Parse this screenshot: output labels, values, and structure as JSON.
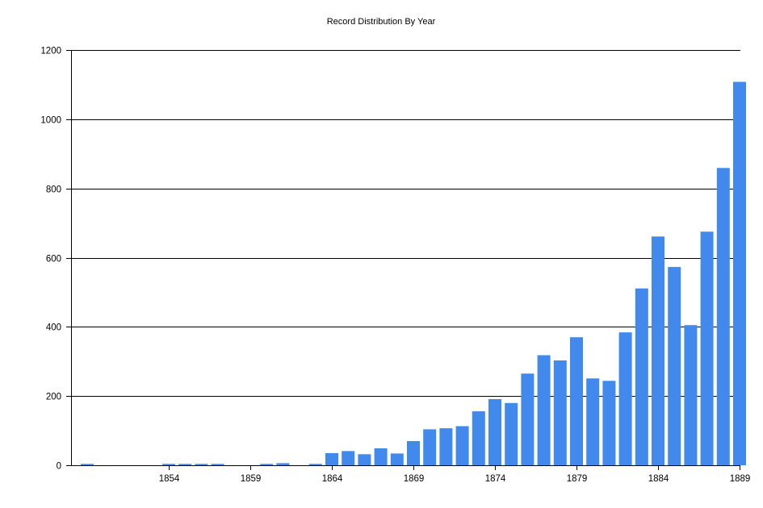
{
  "chart_data": {
    "type": "bar",
    "title": "Record Distribution By Year",
    "xlabel": "",
    "ylabel": "",
    "ylim": [
      0,
      1200
    ],
    "yticks": [
      "0",
      "200",
      "400",
      "600",
      "800",
      "1000",
      "1200"
    ],
    "xtick_labels": [
      "1854",
      "1859",
      "1864",
      "1869",
      "1874",
      "1879",
      "1884",
      "1889"
    ],
    "grid": "horizontal",
    "bar_color": "#4189EC",
    "categories": [
      1849,
      1850,
      1851,
      1852,
      1853,
      1854,
      1855,
      1856,
      1857,
      1858,
      1859,
      1860,
      1861,
      1862,
      1863,
      1864,
      1865,
      1866,
      1867,
      1868,
      1869,
      1870,
      1871,
      1872,
      1873,
      1874,
      1875,
      1876,
      1877,
      1878,
      1879,
      1880,
      1881,
      1882,
      1883,
      1884,
      1885,
      1886,
      1887,
      1888,
      1889
    ],
    "values": [
      4,
      0,
      0,
      0,
      0,
      4,
      4,
      4,
      4,
      0,
      0,
      4,
      6,
      0,
      4,
      35,
      41,
      32,
      49,
      34,
      70,
      104,
      107,
      113,
      156,
      191,
      180,
      265,
      318,
      303,
      370,
      251,
      244,
      384,
      511,
      661,
      573,
      405,
      675,
      859,
      1108
    ]
  }
}
